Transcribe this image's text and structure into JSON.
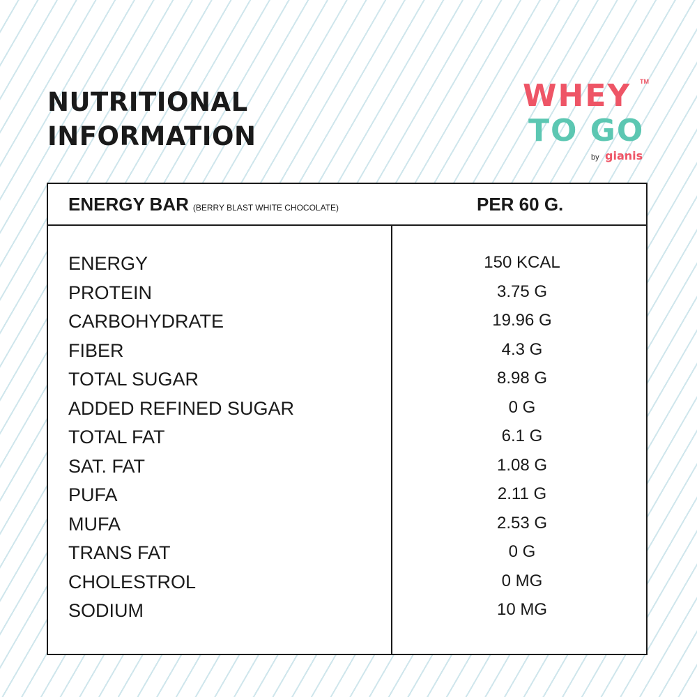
{
  "title": {
    "line1": "NUTRITIONAL",
    "line2": "INFORMATION"
  },
  "logo": {
    "line1": "WHEY",
    "line2": "TO GO",
    "trademark": "TM",
    "by": "by",
    "brand": "gianis",
    "primary_color": "#ee5566",
    "secondary_color": "#5cc7b2"
  },
  "table": {
    "product": "ENERGY BAR",
    "variant": "(BERRY BLAST WHITE CHOCOLATE)",
    "per": "PER 60 G.",
    "rows": [
      {
        "name": "ENERGY",
        "value": "150 KCAL"
      },
      {
        "name": "PROTEIN",
        "value": "3.75 G"
      },
      {
        "name": "CARBOHYDRATE",
        "value": "19.96 G"
      },
      {
        "name": "FIBER",
        "value": "4.3 G"
      },
      {
        "name": "TOTAL SUGAR",
        "value": "8.98 G"
      },
      {
        "name": "ADDED REFINED SUGAR",
        "value": "0 G"
      },
      {
        "name": "TOTAL FAT",
        "value": "6.1 G"
      },
      {
        "name": "SAT. FAT",
        "value": "1.08 G"
      },
      {
        "name": "PUFA",
        "value": "2.11 G"
      },
      {
        "name": "MUFA",
        "value": "2.53 G"
      },
      {
        "name": "TRANS FAT",
        "value": "0 G"
      },
      {
        "name": "CHOLESTROL",
        "value": "0 MG"
      },
      {
        "name": "SODIUM",
        "value": "10 MG"
      }
    ]
  }
}
